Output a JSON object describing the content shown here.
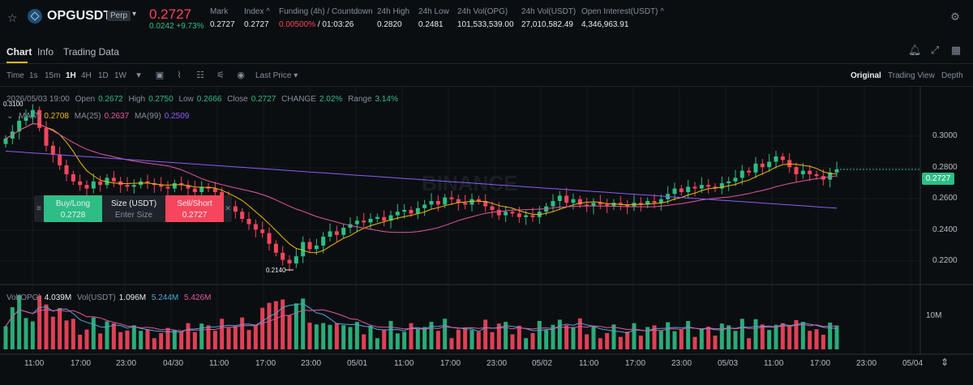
{
  "header": {
    "symbol": "OPGUSDT",
    "contract_badge": "Perp",
    "last_price": "0.2727",
    "change": "0.0242 +9.73%",
    "stats": [
      {
        "label": "Mark",
        "value": "0.2727"
      },
      {
        "label": "Index ^",
        "value": "0.2727"
      },
      {
        "label": "Funding (4h) / Countdown",
        "value_funding": "0.00500%",
        "value_countdown": "/ 01:03:26"
      },
      {
        "label": "24h High",
        "value": "0.2820"
      },
      {
        "label": "24h Low",
        "value": "0.2481"
      },
      {
        "label": "24h Vol(OPG)",
        "value": "101,533,539.00"
      },
      {
        "label": "24h Vol(USDT)",
        "value": "27,010,582.49"
      },
      {
        "label": "Open Interest(USDT) ^",
        "value": "4,346,963.91"
      }
    ]
  },
  "tabs": [
    "Chart",
    "Info",
    "Trading Data"
  ],
  "toolbar": {
    "intervals": [
      "Time",
      "1s",
      "15m",
      "1H",
      "4H",
      "1D",
      "1W"
    ],
    "active_interval": "1H",
    "price_type": "Last Price",
    "views": [
      "Original",
      "Trading View",
      "Depth"
    ]
  },
  "legend": {
    "ohlc": {
      "date": "2026/05/03 19:00",
      "open_label": "Open",
      "open": "0.2672",
      "high_label": "High",
      "high": "0.2750",
      "low_label": "Low",
      "low": "0.2666",
      "close_label": "Close",
      "close": "0.2727",
      "change_label": "CHANGE",
      "change": "2.02%",
      "range_label": "Range",
      "range": "3.14%"
    },
    "ma": {
      "ma7_label": "MA(7)",
      "ma7": "0.2708",
      "ma25_label": "MA(25)",
      "ma25": "0.2637",
      "ma99_label": "MA(99)",
      "ma99": "0.2509"
    },
    "vol": {
      "opg_label": "Vol(OPG)",
      "opg": "4.039M",
      "usdt_label": "Vol(USDT)",
      "usdt": "1.096M",
      "v2": "5.244M",
      "v3": "5.426M"
    }
  },
  "order_panel": {
    "buy_label": "Buy/Long",
    "buy_price": "0.2728",
    "size_label": "Size (USDT)",
    "size_placeholder": "Enter Size",
    "sell_label": "Sell/Short",
    "sell_price": "0.2727"
  },
  "price_axis": [
    "0.3000",
    "0.2800",
    "0.2600",
    "0.2400",
    "0.2200"
  ],
  "current_price_tag": "0.2727",
  "volume_axis": [
    "10M"
  ],
  "marker_high": "0.3100",
  "marker_low": "0.2140",
  "time_axis": [
    "11:00",
    "17:00",
    "23:00",
    "04/30",
    "11:00",
    "17:00",
    "23:00",
    "05/01",
    "11:00",
    "17:00",
    "23:00",
    "05/02",
    "11:00",
    "17:00",
    "23:00",
    "05/03",
    "11:00",
    "17:00",
    "23:00",
    "05/04"
  ],
  "watermark": "BINANCE",
  "colors": {
    "up": "#2ebd85",
    "down": "#f6465d",
    "ma7": "#f0b90b",
    "ma25": "#e0589e",
    "ma99": "#8b5cf6",
    "accent": "#f0b90b"
  },
  "chart_data": {
    "type": "candlestick",
    "interval": "1H",
    "price_range": [
      0.21,
      0.31
    ],
    "close": [
      0.29,
      0.294,
      0.3,
      0.302,
      0.306,
      0.296,
      0.286,
      0.281,
      0.275,
      0.27,
      0.266,
      0.264,
      0.262,
      0.266,
      0.264,
      0.268,
      0.266,
      0.264,
      0.263,
      0.264,
      0.266,
      0.265,
      0.264,
      0.263,
      0.262,
      0.265,
      0.264,
      0.262,
      0.26,
      0.263,
      0.262,
      0.26,
      0.256,
      0.252,
      0.249,
      0.245,
      0.242,
      0.239,
      0.237,
      0.231,
      0.226,
      0.222,
      0.22,
      0.224,
      0.232,
      0.228,
      0.23,
      0.235,
      0.238,
      0.236,
      0.24,
      0.242,
      0.244,
      0.243,
      0.245,
      0.246,
      0.244,
      0.247,
      0.249,
      0.25,
      0.248,
      0.251,
      0.253,
      0.255,
      0.253,
      0.257,
      0.256,
      0.254,
      0.253,
      0.256,
      0.255,
      0.252,
      0.25,
      0.247,
      0.249,
      0.248,
      0.246,
      0.247,
      0.246,
      0.249,
      0.252,
      0.255,
      0.258,
      0.254,
      0.256,
      0.253,
      0.252,
      0.254,
      0.253,
      0.252,
      0.254,
      0.253,
      0.252,
      0.254,
      0.253,
      0.255,
      0.254,
      0.256,
      0.259,
      0.262,
      0.26,
      0.263,
      0.262,
      0.264,
      0.263,
      0.262,
      0.265,
      0.266,
      0.268,
      0.272,
      0.271,
      0.276,
      0.274,
      0.277,
      0.28,
      0.278,
      0.274,
      0.27,
      0.272,
      0.27,
      0.269,
      0.267,
      0.271,
      0.2727
    ],
    "volume_max_m": 16,
    "ma_values": {
      "ma7": 0.2708,
      "ma25": 0.2637,
      "ma99": 0.2509
    }
  }
}
